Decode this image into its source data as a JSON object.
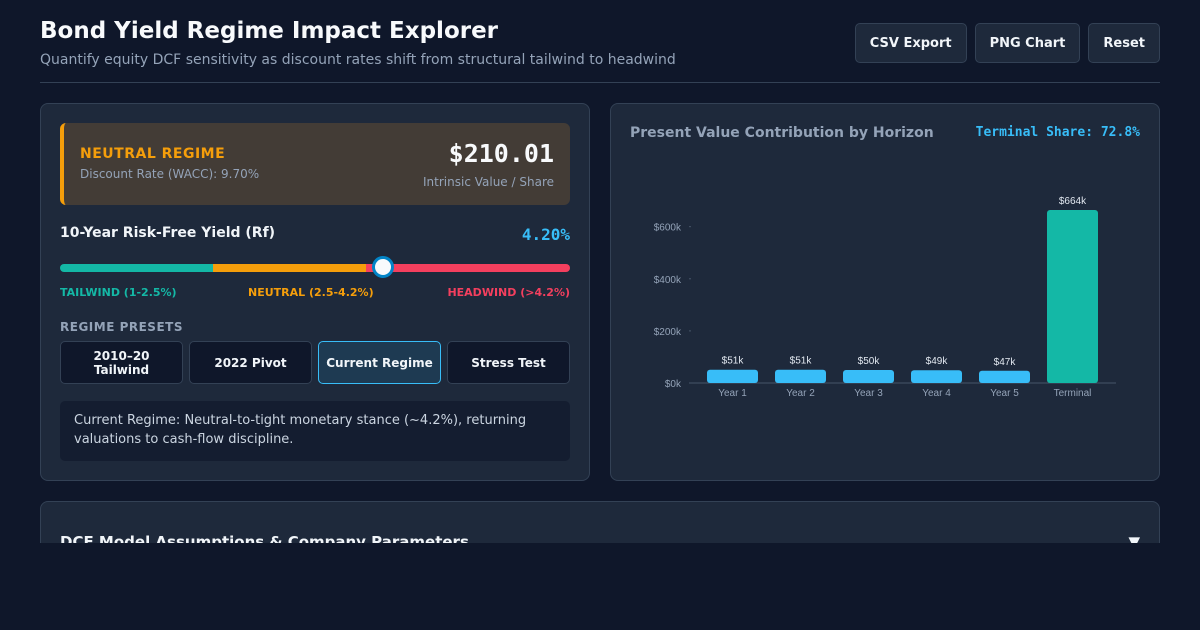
{
  "header": {
    "title": "Bond Yield Regime Impact Explorer",
    "subtitle": "Quantify equity DCF sensitivity as discount rates shift from structural tailwind to headwind",
    "buttons": {
      "csv": "CSV Export",
      "png": "PNG Chart",
      "reset": "Reset"
    }
  },
  "regime": {
    "name": "NEUTRAL REGIME",
    "discount_rate": "Discount Rate (WACC): 9.70%",
    "intrinsic_value": "$210.01",
    "intrinsic_label": "Intrinsic Value / Share",
    "accent": "#f59e0b"
  },
  "slider": {
    "label": "10-Year Risk-Free Yield (Rf)",
    "value_text": "4.20%",
    "value": 4.2,
    "zones": {
      "tailwind": "TAILWIND (1-2.5%)",
      "neutral": "NEUTRAL (2.5-4.2%)",
      "headwind": "HEADWIND (>4.2%)"
    },
    "colors": {
      "tailwind": "#14b8a6",
      "neutral": "#f59e0b",
      "headwind": "#f43f5e"
    }
  },
  "presets": {
    "label": "REGIME PRESETS",
    "items": [
      {
        "label": "2010–20 Tailwind",
        "active": false
      },
      {
        "label": "2022 Pivot",
        "active": false
      },
      {
        "label": "Current Regime",
        "active": true
      },
      {
        "label": "Stress Test",
        "active": false
      }
    ],
    "description": "Current Regime: Neutral-to-tight monetary stance (~4.2%), returning valuations to cash-flow discipline."
  },
  "chart_panel": {
    "title": "Present Value Contribution by Horizon",
    "share": "Terminal Share: 72.8%"
  },
  "chart_data": {
    "type": "bar",
    "categories": [
      "Year 1",
      "Year 2",
      "Year 3",
      "Year 4",
      "Year 5",
      "Terminal"
    ],
    "values": [
      51,
      51,
      50,
      49,
      47,
      664
    ],
    "value_labels": [
      "$51k",
      "$51k",
      "$50k",
      "$49k",
      "$47k",
      "$664k"
    ],
    "yticks": [
      0,
      200,
      400,
      600
    ],
    "ytick_labels": [
      "$0k",
      "$200k",
      "$400k",
      "$600k"
    ],
    "ylim": [
      0,
      664
    ],
    "colors": {
      "year": "#38bdf8",
      "terminal": "#14b8a6"
    }
  },
  "assumptions": {
    "title": "DCF Model Assumptions & Company Parameters",
    "chevron": "▼"
  }
}
